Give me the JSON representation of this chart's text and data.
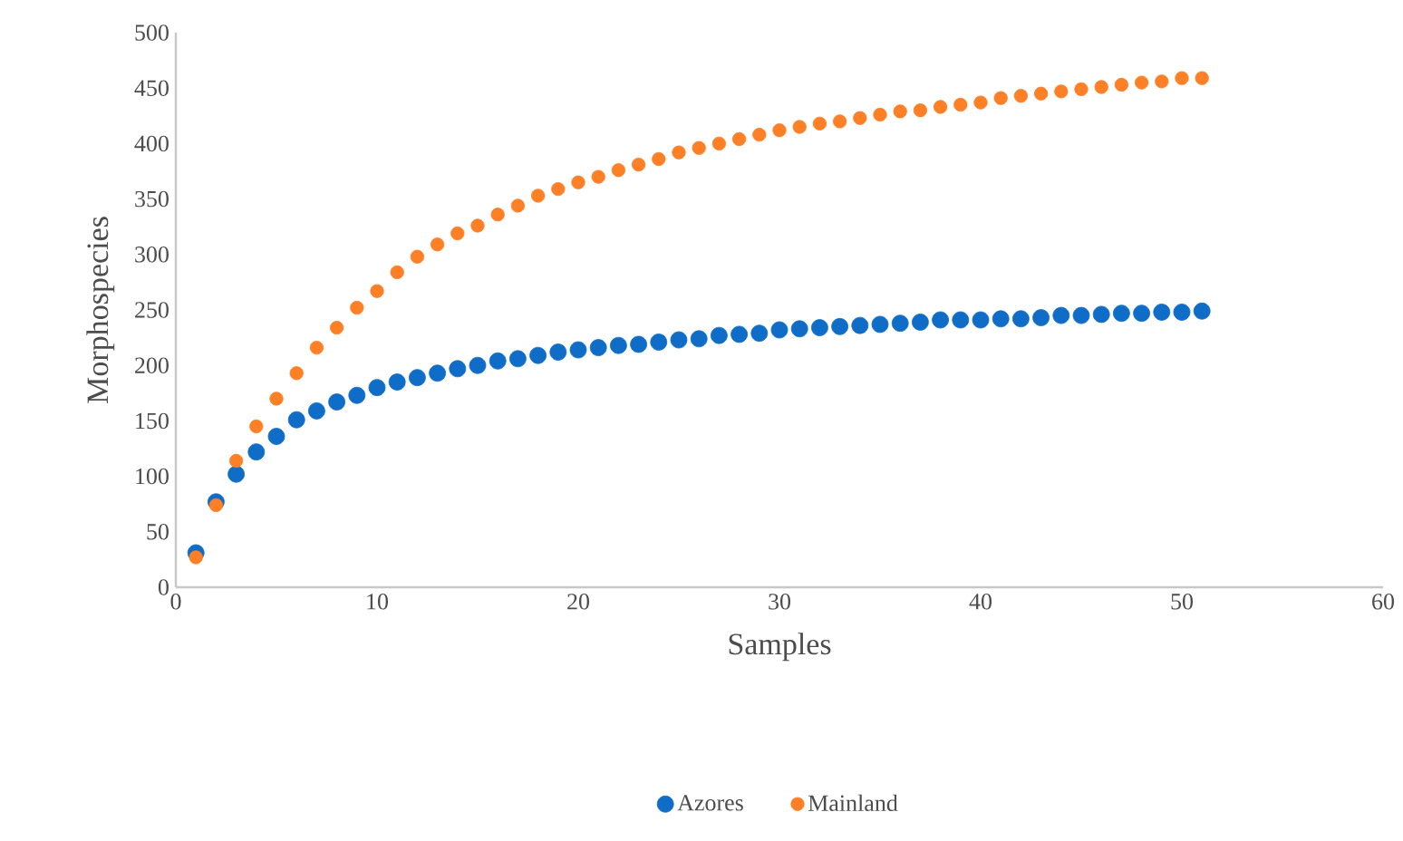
{
  "chart_data": {
    "type": "scatter",
    "xlabel": "Samples",
    "ylabel": "Morphospecies",
    "x": [
      1,
      2,
      3,
      4,
      5,
      6,
      7,
      8,
      9,
      10,
      11,
      12,
      13,
      14,
      15,
      16,
      17,
      18,
      19,
      20,
      21,
      22,
      23,
      24,
      25,
      26,
      27,
      28,
      29,
      30,
      31,
      32,
      33,
      34,
      35,
      36,
      37,
      38,
      39,
      40,
      41,
      42,
      43,
      44,
      45,
      46,
      47,
      48,
      49,
      50,
      51
    ],
    "series": [
      {
        "name": "Azores",
        "color": "#0f6dc8",
        "values": [
          31,
          77,
          102,
          122,
          136,
          151,
          159,
          167,
          173,
          180,
          185,
          189,
          193,
          197,
          200,
          204,
          206,
          209,
          212,
          214,
          216,
          218,
          219,
          221,
          223,
          224,
          227,
          228,
          229,
          232,
          233,
          234,
          235,
          236,
          237,
          238,
          239,
          241,
          241,
          241,
          242,
          242,
          243,
          245,
          245,
          246,
          247,
          247,
          248,
          248,
          249
        ]
      },
      {
        "name": "Mainland",
        "color": "#fd7f26",
        "values": [
          27,
          74,
          114,
          145,
          170,
          193,
          216,
          234,
          252,
          267,
          284,
          298,
          309,
          319,
          326,
          336,
          344,
          353,
          359,
          365,
          370,
          376,
          381,
          386,
          392,
          396,
          400,
          404,
          408,
          412,
          415,
          418,
          420,
          423,
          426,
          429,
          430,
          433,
          435,
          437,
          441,
          443,
          445,
          447,
          449,
          451,
          453,
          455,
          456,
          459,
          459
        ]
      }
    ],
    "xlim": [
      0,
      60
    ],
    "xticks": [
      0,
      10,
      20,
      30,
      40,
      50,
      60
    ],
    "ylim": [
      0,
      500
    ],
    "yticks": [
      0,
      50,
      100,
      150,
      200,
      250,
      300,
      350,
      400,
      450,
      500
    ],
    "marker": "circle",
    "legend": "bottom"
  }
}
